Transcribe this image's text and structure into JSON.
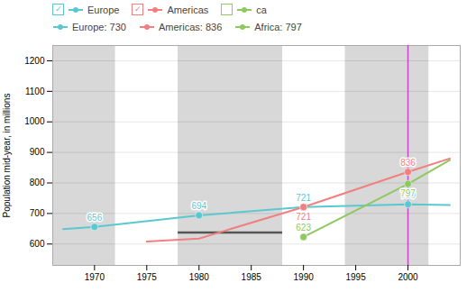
{
  "chart_data": {
    "type": "line",
    "ylabel": "Population mid-year, in millions",
    "xlim": [
      1966,
      2005
    ],
    "xticks": [
      1970,
      1975,
      1980,
      1985,
      1990,
      1995,
      2000
    ],
    "ylim": [
      530,
      1250
    ],
    "yticks": [
      600,
      700,
      800,
      900,
      1000,
      1100,
      1200
    ],
    "grid": true,
    "data_labels": true,
    "series": [
      {
        "name": "Europe",
        "color": "#5bc8d0",
        "marker": "circle",
        "x": [
          1967,
          1970,
          1980,
          1990,
          2000,
          2004
        ],
        "values": [
          649,
          656,
          694,
          721,
          730,
          728
        ],
        "value_labels": [
          null,
          "656",
          "694",
          "721",
          "730",
          null
        ]
      },
      {
        "name": "Americas",
        "color": "#f08080",
        "marker": "circle",
        "x": [
          1975,
          1980,
          1990,
          2000,
          2004
        ],
        "values": [
          608,
          618,
          721,
          836,
          880
        ],
        "value_labels": [
          null,
          null,
          "721",
          "836",
          null
        ]
      },
      {
        "name": "Africa",
        "color": "#90c860",
        "marker": "circle",
        "x": [
          1990,
          2000,
          2004
        ],
        "values": [
          623,
          797,
          875
        ],
        "value_labels": [
          "623",
          "797",
          null
        ]
      }
    ],
    "bands": {
      "ranges": [
        [
          1966,
          1972
        ],
        [
          1978,
          1988
        ],
        [
          1994,
          2002
        ]
      ],
      "color": "#d8d8d8"
    },
    "underline": {
      "x1": 1978,
      "x2": 1988,
      "y": 638,
      "color": "#555555"
    },
    "crosshair": {
      "x": 2000,
      "color": "#cc44cc"
    },
    "tooltip": [
      {
        "text": "Europe: 730",
        "color": "#5bc8d0"
      },
      {
        "text": "Americas: 836",
        "color": "#f08080"
      },
      {
        "text": "Africa: 797",
        "color": "#90c860"
      }
    ],
    "legend_entries": [
      {
        "name": "Europe",
        "color": "#5bc8d0",
        "check": "✓"
      },
      {
        "name": "Americas",
        "color": "#f08080",
        "check": "✓"
      },
      {
        "name": "ca",
        "color": "#90c860"
      }
    ]
  }
}
